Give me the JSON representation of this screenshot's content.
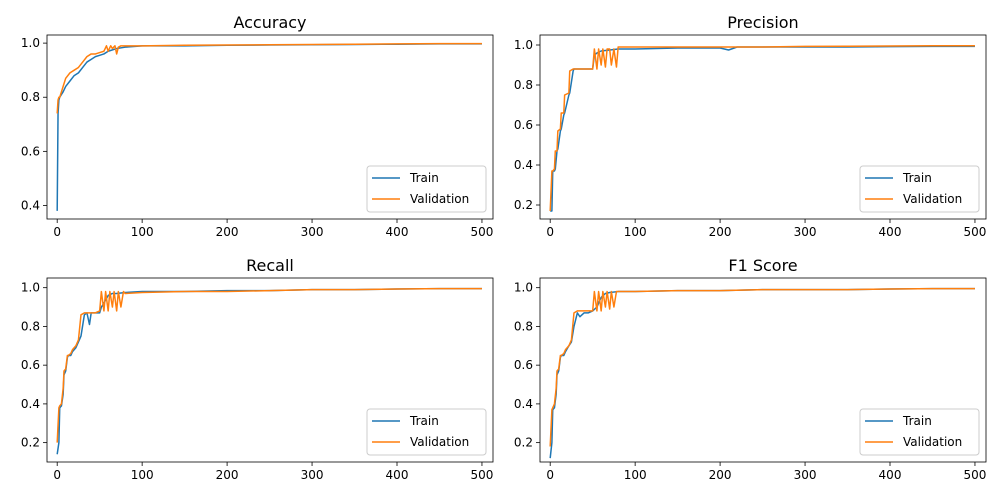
{
  "chart_data": [
    {
      "type": "line",
      "title": "Accuracy",
      "xlabel": "",
      "ylabel": "",
      "xlim": [
        -12,
        513
      ],
      "ylim": [
        0.35,
        1.03
      ],
      "xticks": [
        0,
        100,
        200,
        300,
        400,
        500
      ],
      "yticks": [
        0.4,
        0.6,
        0.8,
        1.0
      ],
      "ytick_labels": [
        "0.4",
        "0.6",
        "0.8",
        "1.0"
      ],
      "legend_position": "lower-right",
      "grid": false,
      "series": [
        {
          "name": "Train",
          "color": "#1f77b4",
          "x": [
            0,
            1,
            2,
            3,
            5,
            7,
            10,
            15,
            20,
            25,
            30,
            35,
            40,
            45,
            50,
            55,
            60,
            65,
            70,
            80,
            100,
            150,
            200,
            250,
            300,
            350,
            400,
            450,
            500
          ],
          "y": [
            0.38,
            0.74,
            0.79,
            0.8,
            0.81,
            0.82,
            0.84,
            0.86,
            0.88,
            0.89,
            0.91,
            0.93,
            0.94,
            0.95,
            0.955,
            0.96,
            0.97,
            0.975,
            0.98,
            0.985,
            0.99,
            0.99,
            0.992,
            0.993,
            0.994,
            0.995,
            0.996,
            0.997,
            0.997
          ]
        },
        {
          "name": "Validation",
          "color": "#ff7f0e",
          "x": [
            0,
            1,
            2,
            3,
            5,
            7,
            10,
            15,
            20,
            25,
            30,
            35,
            40,
            45,
            50,
            55,
            58,
            60,
            63,
            65,
            68,
            70,
            72,
            75,
            80,
            100,
            150,
            200,
            250,
            300,
            350,
            400,
            450,
            500
          ],
          "y": [
            0.74,
            0.79,
            0.8,
            0.8,
            0.82,
            0.84,
            0.87,
            0.89,
            0.9,
            0.91,
            0.93,
            0.95,
            0.96,
            0.96,
            0.965,
            0.97,
            0.99,
            0.97,
            0.99,
            0.98,
            0.99,
            0.96,
            0.985,
            0.99,
            0.99,
            0.99,
            0.992,
            0.993,
            0.994,
            0.995,
            0.996,
            0.997,
            0.998,
            0.998
          ]
        }
      ]
    },
    {
      "type": "line",
      "title": "Precision",
      "xlabel": "",
      "ylabel": "",
      "xlim": [
        -12,
        513
      ],
      "ylim": [
        0.13,
        1.05
      ],
      "xticks": [
        0,
        100,
        200,
        300,
        400,
        500
      ],
      "yticks": [
        0.2,
        0.4,
        0.6,
        0.8,
        1.0
      ],
      "ytick_labels": [
        "0.2",
        "0.4",
        "0.6",
        "0.8",
        "1.0"
      ],
      "legend_position": "lower-right",
      "grid": false,
      "series": [
        {
          "name": "Train",
          "color": "#1f77b4",
          "x": [
            0,
            2,
            3,
            5,
            6,
            8,
            9,
            12,
            13,
            16,
            17,
            22,
            23,
            27,
            28,
            35,
            40,
            45,
            50,
            52,
            55,
            60,
            70,
            80,
            100,
            150,
            200,
            210,
            220,
            250,
            300,
            350,
            400,
            450,
            500
          ],
          "y": [
            0.17,
            0.17,
            0.37,
            0.37,
            0.38,
            0.47,
            0.48,
            0.57,
            0.58,
            0.65,
            0.66,
            0.75,
            0.76,
            0.87,
            0.88,
            0.88,
            0.88,
            0.88,
            0.88,
            0.95,
            0.96,
            0.97,
            0.975,
            0.98,
            0.98,
            0.985,
            0.985,
            0.975,
            0.99,
            0.99,
            0.99,
            0.99,
            0.992,
            0.993,
            0.993
          ]
        },
        {
          "name": "Validation",
          "color": "#ff7f0e",
          "x": [
            0,
            2,
            3,
            5,
            6,
            8,
            9,
            12,
            13,
            16,
            17,
            22,
            23,
            27,
            28,
            35,
            45,
            50,
            52,
            55,
            57,
            60,
            62,
            65,
            67,
            70,
            72,
            75,
            78,
            80,
            100,
            150,
            200,
            250,
            300,
            350,
            400,
            450,
            500
          ],
          "y": [
            0.17,
            0.37,
            0.37,
            0.38,
            0.47,
            0.47,
            0.57,
            0.58,
            0.66,
            0.66,
            0.75,
            0.76,
            0.87,
            0.88,
            0.88,
            0.88,
            0.88,
            0.88,
            0.98,
            0.88,
            0.98,
            0.9,
            0.98,
            0.89,
            0.98,
            0.98,
            0.9,
            0.98,
            0.89,
            0.99,
            0.99,
            0.99,
            0.99,
            0.99,
            0.993,
            0.994,
            0.995,
            0.996,
            0.996
          ]
        }
      ]
    },
    {
      "type": "line",
      "title": "Recall",
      "xlabel": "",
      "ylabel": "",
      "xlim": [
        -12,
        513
      ],
      "ylim": [
        0.1,
        1.05
      ],
      "xticks": [
        0,
        100,
        200,
        300,
        400,
        500
      ],
      "yticks": [
        0.2,
        0.4,
        0.6,
        0.8,
        1.0
      ],
      "ytick_labels": [
        "0.2",
        "0.4",
        "0.6",
        "0.8",
        "1.0"
      ],
      "legend_position": "lower-right",
      "grid": false,
      "series": [
        {
          "name": "Train",
          "color": "#1f77b4",
          "x": [
            0,
            2,
            3,
            5,
            7,
            8,
            10,
            12,
            13,
            16,
            18,
            22,
            25,
            28,
            32,
            35,
            38,
            40,
            42,
            45,
            50,
            52,
            55,
            60,
            65,
            70,
            80,
            100,
            150,
            200,
            250,
            300,
            350,
            400,
            450,
            500
          ],
          "y": [
            0.14,
            0.2,
            0.38,
            0.39,
            0.45,
            0.55,
            0.57,
            0.64,
            0.65,
            0.65,
            0.67,
            0.69,
            0.72,
            0.75,
            0.86,
            0.87,
            0.81,
            0.87,
            0.87,
            0.87,
            0.87,
            0.9,
            0.92,
            0.96,
            0.97,
            0.97,
            0.975,
            0.98,
            0.98,
            0.985,
            0.985,
            0.99,
            0.99,
            0.993,
            0.995,
            0.995
          ]
        },
        {
          "name": "Validation",
          "color": "#ff7f0e",
          "x": [
            0,
            2,
            3,
            5,
            7,
            8,
            10,
            12,
            13,
            16,
            18,
            22,
            25,
            28,
            32,
            35,
            40,
            45,
            50,
            52,
            55,
            57,
            60,
            62,
            65,
            67,
            70,
            72,
            75,
            78,
            80,
            100,
            150,
            200,
            250,
            300,
            350,
            400,
            450,
            500
          ],
          "y": [
            0.2,
            0.38,
            0.39,
            0.4,
            0.48,
            0.57,
            0.58,
            0.65,
            0.65,
            0.66,
            0.68,
            0.7,
            0.73,
            0.86,
            0.87,
            0.87,
            0.87,
            0.87,
            0.88,
            0.98,
            0.88,
            0.98,
            0.88,
            0.98,
            0.9,
            0.98,
            0.88,
            0.98,
            0.9,
            0.98,
            0.97,
            0.975,
            0.98,
            0.98,
            0.985,
            0.99,
            0.99,
            0.993,
            0.995,
            0.995
          ]
        }
      ]
    },
    {
      "type": "line",
      "title": "F1 Score",
      "xlabel": "",
      "ylabel": "",
      "xlim": [
        -12,
        513
      ],
      "ylim": [
        0.1,
        1.05
      ],
      "xticks": [
        0,
        100,
        200,
        300,
        400,
        500
      ],
      "yticks": [
        0.2,
        0.4,
        0.6,
        0.8,
        1.0
      ],
      "ytick_labels": [
        "0.2",
        "0.4",
        "0.6",
        "0.8",
        "1.0"
      ],
      "legend_position": "lower-right",
      "grid": false,
      "series": [
        {
          "name": "Train",
          "color": "#1f77b4",
          "x": [
            0,
            2,
            3,
            5,
            7,
            8,
            10,
            12,
            13,
            16,
            18,
            22,
            25,
            28,
            32,
            35,
            40,
            45,
            50,
            55,
            60,
            65,
            70,
            80,
            100,
            150,
            200,
            250,
            300,
            350,
            400,
            450,
            500
          ],
          "y": [
            0.12,
            0.2,
            0.37,
            0.38,
            0.45,
            0.55,
            0.57,
            0.64,
            0.65,
            0.65,
            0.67,
            0.7,
            0.72,
            0.8,
            0.87,
            0.85,
            0.87,
            0.87,
            0.88,
            0.9,
            0.95,
            0.97,
            0.975,
            0.98,
            0.98,
            0.985,
            0.985,
            0.99,
            0.99,
            0.99,
            0.993,
            0.995,
            0.995
          ]
        },
        {
          "name": "Validation",
          "color": "#ff7f0e",
          "x": [
            0,
            2,
            3,
            5,
            7,
            8,
            10,
            12,
            13,
            16,
            18,
            22,
            25,
            28,
            32,
            35,
            40,
            45,
            50,
            52,
            55,
            57,
            60,
            62,
            65,
            67,
            70,
            72,
            75,
            78,
            80,
            100,
            150,
            200,
            250,
            300,
            350,
            400,
            450,
            500
          ],
          "y": [
            0.18,
            0.37,
            0.38,
            0.4,
            0.48,
            0.57,
            0.58,
            0.65,
            0.65,
            0.66,
            0.68,
            0.7,
            0.73,
            0.87,
            0.88,
            0.88,
            0.88,
            0.88,
            0.88,
            0.98,
            0.88,
            0.98,
            0.88,
            0.98,
            0.9,
            0.98,
            0.89,
            0.98,
            0.9,
            0.98,
            0.98,
            0.98,
            0.985,
            0.985,
            0.99,
            0.99,
            0.99,
            0.993,
            0.995,
            0.995
          ]
        }
      ]
    }
  ]
}
